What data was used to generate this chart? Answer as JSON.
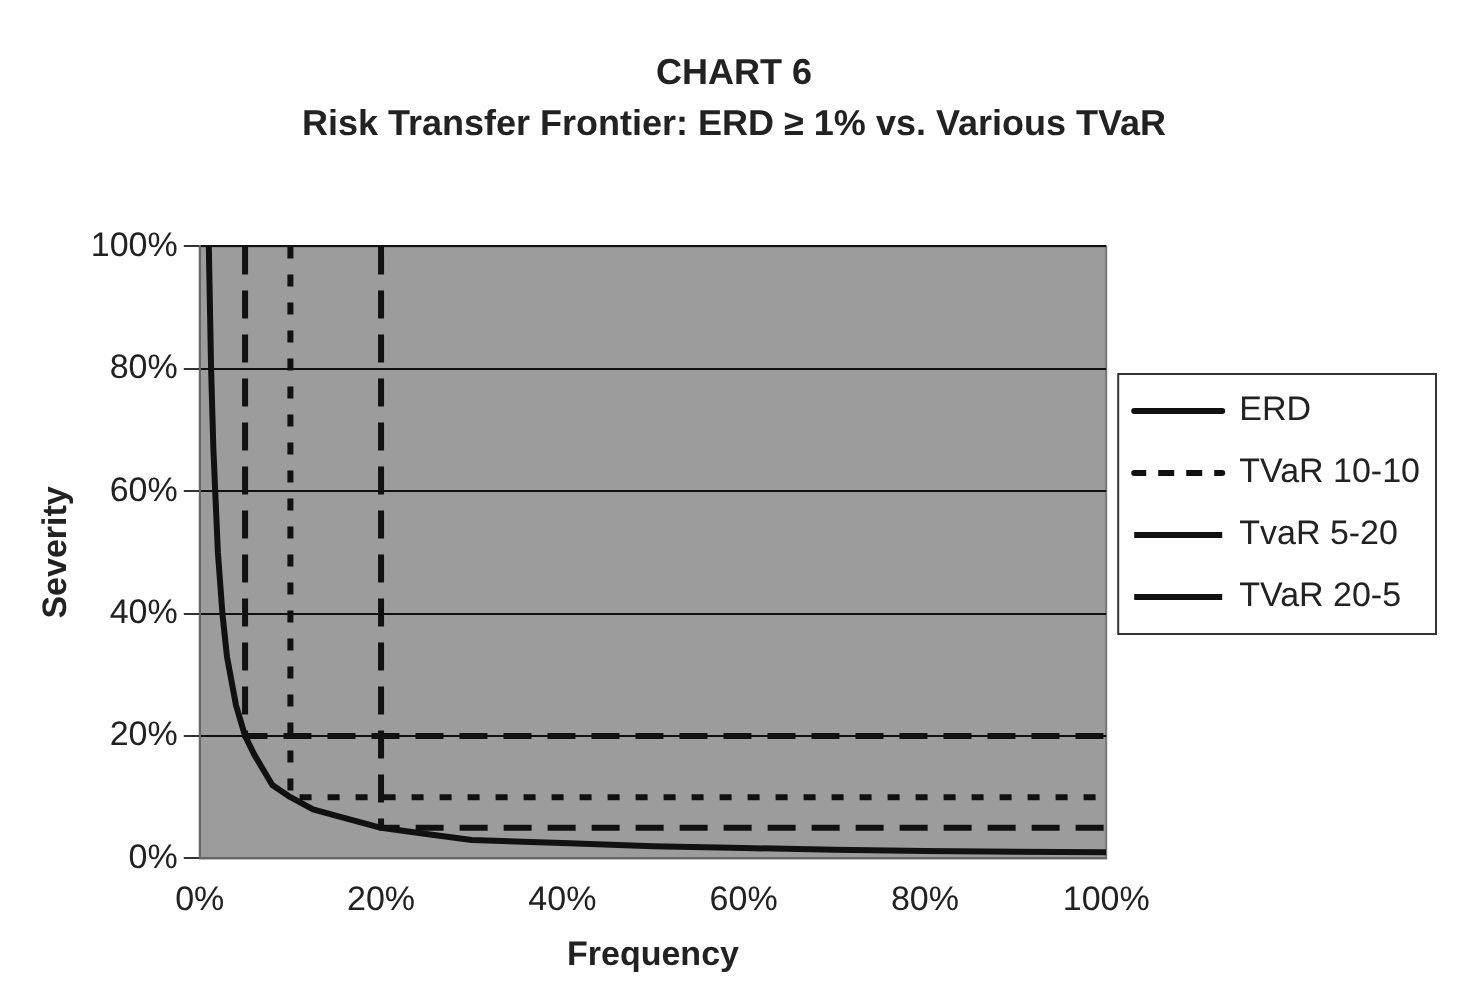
{
  "chart_data": {
    "type": "line",
    "title": "CHART 6",
    "subtitle": "Risk Transfer Frontier: ERD ≥ 1% vs. Various TVaR",
    "xlabel": "Frequency",
    "ylabel": "Severity",
    "xlim": [
      0,
      100
    ],
    "ylim": [
      0,
      100
    ],
    "xticks": [
      {
        "value": 0,
        "label": "0%"
      },
      {
        "value": 20,
        "label": "20%"
      },
      {
        "value": 40,
        "label": "40%"
      },
      {
        "value": 60,
        "label": "60%"
      },
      {
        "value": 80,
        "label": "80%"
      },
      {
        "value": 100,
        "label": "100%"
      }
    ],
    "yticks": [
      {
        "value": 0,
        "label": "0%"
      },
      {
        "value": 20,
        "label": "20%"
      },
      {
        "value": 40,
        "label": "40%"
      },
      {
        "value": 60,
        "label": "60%"
      },
      {
        "value": 80,
        "label": "80%"
      },
      {
        "value": 100,
        "label": "100%"
      }
    ],
    "grid": "y",
    "legend": "right",
    "marker": "none",
    "series": [
      {
        "name": "ERD",
        "color": "#111111",
        "line_style": "solid",
        "x": [
          1,
          1.25,
          1.5,
          2,
          2.5,
          3,
          4,
          5,
          6,
          8,
          10,
          12.5,
          15,
          20,
          25,
          30,
          40,
          50,
          60,
          70,
          80,
          90,
          100
        ],
        "values": [
          100,
          80,
          67,
          50,
          40,
          33,
          25,
          20,
          17,
          12,
          10,
          8,
          7,
          5,
          4,
          3,
          2.5,
          2,
          1.7,
          1.4,
          1.2,
          1.1,
          1
        ]
      },
      {
        "name": "TVaR 10-10",
        "color": "#111111",
        "line_style": "dotted",
        "x": [
          10,
          10,
          100
        ],
        "values": [
          100,
          10,
          10
        ]
      },
      {
        "name": "TvaR 5-20",
        "color": "#111111",
        "line_style": "dashed",
        "x": [
          5,
          5,
          100
        ],
        "values": [
          100,
          20,
          20
        ]
      },
      {
        "name": "TVaR 20-5",
        "color": "#111111",
        "line_style": "dashed",
        "x": [
          20,
          20,
          100
        ],
        "values": [
          100,
          5,
          5
        ]
      }
    ]
  }
}
